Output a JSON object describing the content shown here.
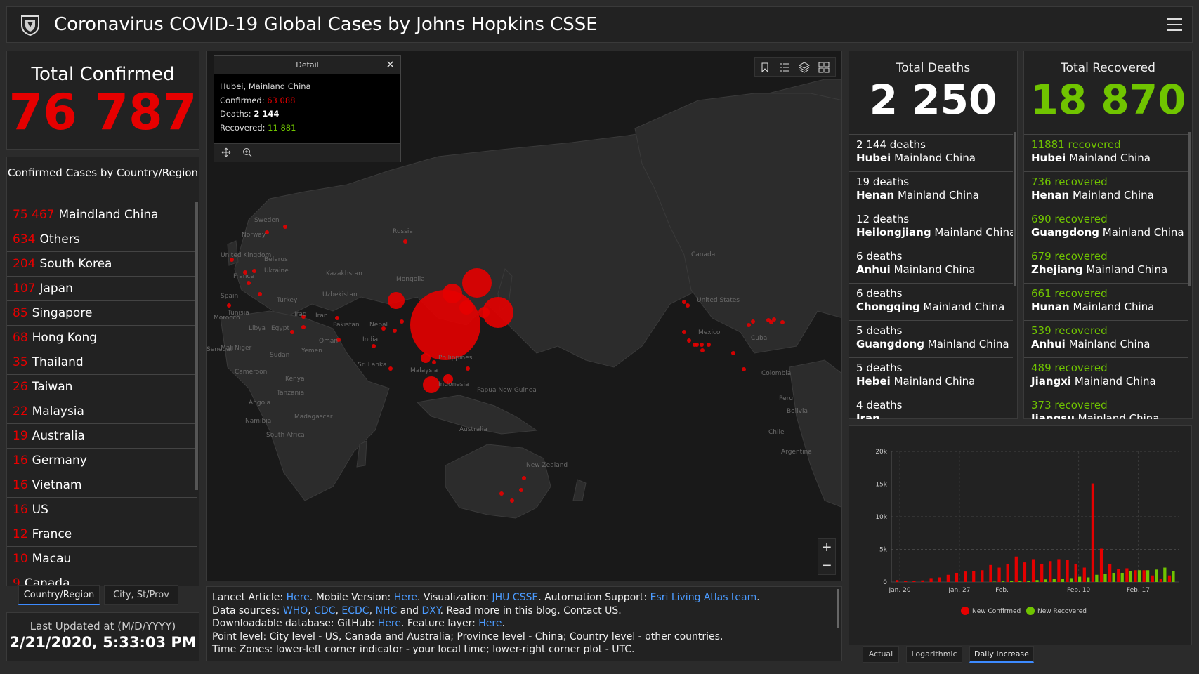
{
  "header": {
    "title": "Coronavirus COVID-19 Global Cases by Johns Hopkins CSSE",
    "logo_icon": "jhu-shield-icon",
    "menu_icon": "hamburger-menu-icon"
  },
  "total_confirmed": {
    "label": "Total Confirmed",
    "value": "76 787"
  },
  "country_panel": {
    "title": "Confirmed Cases by Country/Region",
    "rows": [
      {
        "count": "75 467",
        "name": "Maindland China"
      },
      {
        "count": "634",
        "name": "Others"
      },
      {
        "count": "204",
        "name": "South Korea"
      },
      {
        "count": "107",
        "name": "Japan"
      },
      {
        "count": "85",
        "name": "Singapore"
      },
      {
        "count": "68",
        "name": "Hong Kong"
      },
      {
        "count": "35",
        "name": "Thailand"
      },
      {
        "count": "26",
        "name": "Taiwan"
      },
      {
        "count": "22",
        "name": "Malaysia"
      },
      {
        "count": "19",
        "name": "Australia"
      },
      {
        "count": "16",
        "name": "Germany"
      },
      {
        "count": "16",
        "name": "Vietnam"
      },
      {
        "count": "16",
        "name": "US"
      },
      {
        "count": "12",
        "name": "France"
      },
      {
        "count": "10",
        "name": "Macau"
      },
      {
        "count": "9",
        "name": "Canada"
      }
    ],
    "tabs": [
      "Country/Region",
      "City, St/Prov"
    ]
  },
  "last_updated": {
    "label": "Last Updated at (M/D/YYYY)",
    "value": "2/21/2020, 5:33:03 PM"
  },
  "popup": {
    "title": "Detail",
    "location": "Hubei, Mainland China",
    "confirmed_label": "Confirmed:",
    "confirmed": "63 088",
    "deaths_label": "Deaths:",
    "deaths": "2 144",
    "recovered_label": "Recovered:",
    "recovered": "11 881"
  },
  "map_labels": [
    "Sweden",
    "Norway",
    "Russia",
    "United Kingdom",
    "Belarus",
    "Ukraine",
    "France",
    "Kazakhstan",
    "Mongolia",
    "Spain",
    "Turkey",
    "Uzbekistan",
    "Morocco",
    "Tunisia",
    "Iraq",
    "Iran",
    "Libya",
    "Egypt",
    "Pakistan",
    "Nepal",
    "Mali",
    "Niger",
    "Oman",
    "India",
    "Yemen",
    "Sudan",
    "Philippines",
    "Sri Lanka",
    "Malaysia",
    "Cameroon",
    "Kenya",
    "Indonesia",
    "Papua New Guinea",
    "Tanzania",
    "Angola",
    "Madagascar",
    "Namibia",
    "South Africa",
    "Australia",
    "New Zealand",
    "Canada",
    "United States",
    "Mexico",
    "Cuba",
    "Colombia",
    "Peru",
    "Chile",
    "Argentina",
    "Bolivia",
    "Senegal"
  ],
  "info": {
    "l1a": "Lancet Article: ",
    "here1": "Here",
    "l1b": ". Mobile Version: ",
    "here2": "Here",
    "l1c": ". Visualization: ",
    "jhu": "JHU CSSE",
    "l1d": ". Automation Support: ",
    "esri": "Esri Living Atlas team",
    "l1e": ".",
    "l2a": "Data sources: ",
    "who": "WHO",
    "c1": ", ",
    "cdc": "CDC",
    "c2": ", ",
    "ecdc": "ECDC",
    "c3": ", ",
    "nhc": "NHC",
    "and": " and ",
    "dxy": "DXY",
    "l2b": ". Read more in this blog. Contact US.",
    "l3a": "Downloadable database: GitHub: ",
    "here3": "Here",
    "l3b": ". Feature layer: ",
    "here4": "Here",
    "l3c": ".",
    "l4": "Point level: City level - US, Canada and Australia; Province level - China; Country level - other countries.",
    "l5": "Time Zones: lower-left corner indicator - your local time; lower-right corner plot - UTC."
  },
  "deaths": {
    "label": "Total Deaths",
    "value": "2 250",
    "unit": "deaths",
    "rows": [
      {
        "n": "2 144",
        "prov": "Hubei",
        "country": "Mainland China"
      },
      {
        "n": "19",
        "prov": "Henan",
        "country": "Mainland China"
      },
      {
        "n": "12",
        "prov": "Heilongjiang",
        "country": "Mainland China"
      },
      {
        "n": "6",
        "prov": "Anhui",
        "country": "Mainland China"
      },
      {
        "n": "6",
        "prov": "Chongqing",
        "country": "Mainland China"
      },
      {
        "n": "5",
        "prov": "Guangdong",
        "country": "Mainland China"
      },
      {
        "n": "5",
        "prov": "Hebei",
        "country": "Mainland China"
      },
      {
        "n": "4",
        "prov": "Iran",
        "country": ""
      }
    ]
  },
  "recovered": {
    "label": "Total Recovered",
    "value": "18 870",
    "unit": "recovered",
    "rows": [
      {
        "n": "11881",
        "prov": "Hubei",
        "country": "Mainland China"
      },
      {
        "n": "736",
        "prov": "Henan",
        "country": "Mainland China"
      },
      {
        "n": "690",
        "prov": "Guangdong",
        "country": "Mainland China"
      },
      {
        "n": "679",
        "prov": "Zhejiang",
        "country": "Mainland China"
      },
      {
        "n": "661",
        "prov": "Hunan",
        "country": "Mainland China"
      },
      {
        "n": "539",
        "prov": "Anhui",
        "country": "Mainland China"
      },
      {
        "n": "489",
        "prov": "Jiangxi",
        "country": "Mainland China"
      },
      {
        "n": "373",
        "prov": "Jiangsu",
        "country": "Mainland China"
      }
    ]
  },
  "chart_tabs": [
    "Actual",
    "Logarithmic",
    "Daily Increase"
  ],
  "colors": {
    "confirmed": "#e60000",
    "recovered": "#70c400",
    "link": "#4b9bff"
  },
  "chart_data": {
    "type": "bar",
    "title": "",
    "xlabel": "",
    "ylabel": "",
    "ylim": [
      0,
      20000
    ],
    "y_ticks": [
      "0",
      "5k",
      "10k",
      "15k",
      "20k"
    ],
    "x_ticks": [
      "Jan. 20",
      "Jan. 27",
      "Feb.",
      "Feb. 10",
      "Feb. 17"
    ],
    "x": [
      "Jan. 20",
      "Jan. 21",
      "Jan. 22",
      "Jan. 23",
      "Jan. 24",
      "Jan. 25",
      "Jan. 26",
      "Jan. 27",
      "Jan. 28",
      "Jan. 29",
      "Jan. 30",
      "Jan. 31",
      "Feb. 1",
      "Feb. 2",
      "Feb. 3",
      "Feb. 4",
      "Feb. 5",
      "Feb. 6",
      "Feb. 7",
      "Feb. 8",
      "Feb. 9",
      "Feb. 10",
      "Feb. 11",
      "Feb. 12",
      "Feb. 13",
      "Feb. 14",
      "Feb. 15",
      "Feb. 16",
      "Feb. 17",
      "Feb. 18",
      "Feb. 19",
      "Feb. 20",
      "Feb. 21"
    ],
    "series": [
      {
        "name": "New Confirmed",
        "color": "#e60000",
        "values": [
          300,
          100,
          150,
          250,
          600,
          700,
          1100,
          1400,
          1600,
          1700,
          1800,
          2600,
          2200,
          2800,
          3900,
          3000,
          3500,
          2800,
          3200,
          3500,
          3400,
          2800,
          2200,
          15100,
          5100,
          2800,
          2000,
          2100,
          1800,
          1800,
          1000,
          500,
          1000
        ]
      },
      {
        "name": "New Recovered",
        "color": "#70c400",
        "values": [
          0,
          0,
          0,
          0,
          0,
          0,
          0,
          0,
          0,
          0,
          0,
          50,
          100,
          200,
          100,
          200,
          300,
          400,
          500,
          500,
          600,
          800,
          700,
          1100,
          1200,
          1400,
          1400,
          1700,
          1800,
          1800,
          1900,
          2200,
          1700
        ]
      }
    ],
    "legend": "bottom"
  }
}
